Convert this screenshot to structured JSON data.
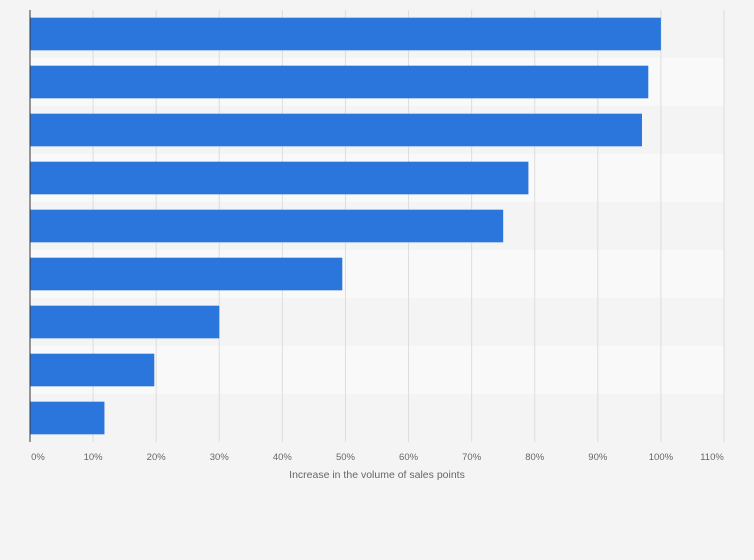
{
  "chart_data": {
    "type": "bar",
    "orientation": "horizontal",
    "categories": [
      "",
      "",
      "",
      "",
      "",
      "",
      "",
      "",
      ""
    ],
    "values": [
      100,
      98,
      97,
      79,
      75,
      49.5,
      30,
      19.7,
      11.8
    ],
    "xlabel": "Increase in the volume of sales points",
    "ylabel": "",
    "xlim": [
      0,
      110
    ],
    "ticks": [
      0,
      10,
      20,
      30,
      40,
      50,
      60,
      70,
      80,
      90,
      100,
      110
    ],
    "tick_labels": [
      "0%",
      "10%",
      "20%",
      "30%",
      "40%",
      "50%",
      "60%",
      "70%",
      "80%",
      "90%",
      "100%",
      "110%"
    ],
    "grid": true,
    "bar_color": "#2a76dc",
    "band_colors": [
      "#f4f4f4",
      "#f9f9f9"
    ],
    "gridline_color": "#dddddd",
    "axis_color": "#333333"
  }
}
